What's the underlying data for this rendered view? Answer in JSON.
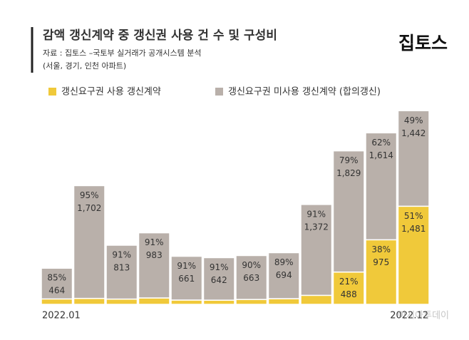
{
  "chart_data": {
    "type": "stacked_bar",
    "title": "감액 갱신계약 중 갱신권 사용 건 수 및 구성비",
    "subtitle_lines": [
      "자료 : 집토스 –국토부 실거래가 공개시스템 분석",
      "(서울, 경기, 인천 아파트)"
    ],
    "logo": "집토스",
    "watermark": "아시아투데이",
    "categories": [
      "2022.01",
      null,
      null,
      null,
      null,
      null,
      null,
      null,
      null,
      null,
      null,
      "2022.12"
    ],
    "series": [
      {
        "name": "갱신요구권 사용 갱신계약",
        "color": "#f0c93a",
        "values": [
          82,
          90,
          80,
          97,
          65,
          63,
          74,
          86,
          136,
          488,
          975,
          1481
        ],
        "value_labels": [
          null,
          null,
          null,
          null,
          null,
          null,
          null,
          null,
          null,
          "488",
          "975",
          "1,481"
        ],
        "percent_labels": [
          null,
          null,
          null,
          null,
          null,
          null,
          null,
          null,
          null,
          "21%",
          "38%",
          "51%"
        ]
      },
      {
        "name": "갱신요구권 미사용 갱신계약 (합의갱신)",
        "color": "#b9b0aa",
        "values": [
          464,
          1702,
          813,
          983,
          661,
          642,
          663,
          694,
          1372,
          1829,
          1614,
          1442
        ],
        "value_labels": [
          "464",
          "1,702",
          "813",
          "983",
          "661",
          "642",
          "663",
          "694",
          "1,372",
          "1,829",
          "1,614",
          "1,442"
        ],
        "percent_labels": [
          "85%",
          "95%",
          "91%",
          "91%",
          "91%",
          "91%",
          "90%",
          "89%",
          "91%",
          "79%",
          "62%",
          "49%"
        ]
      }
    ],
    "ylim": [
      0,
      2980
    ]
  }
}
